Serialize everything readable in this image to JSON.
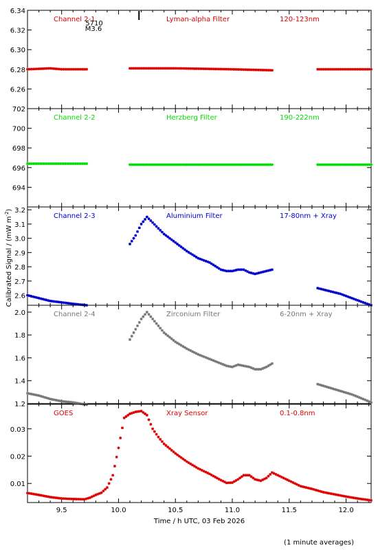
{
  "x_axis": {
    "label": "Time / h UTC, 03 Feb 2026",
    "range": [
      9.2,
      12.22
    ],
    "ticks": [
      "9.5",
      "10.0",
      "10.5",
      "11.0",
      "11.5",
      "12.0"
    ]
  },
  "y_axis_label": "Calibrated Signal / (mW m",
  "y_axis_label_sup": "-2",
  "y_axis_label_end": ")",
  "footnote": "(1 minute averages)",
  "marker": {
    "x": 10.18,
    "label_top": "5710",
    "label_bottom": "M3.6"
  },
  "chart_data": [
    {
      "type": "scatter",
      "labels": [
        "Channel 2-1",
        "Lyman-alpha Filter",
        "120-123nm"
      ],
      "color": "#dd0000",
      "ylim": [
        6.24,
        6.34
      ],
      "yticks": [
        "6.26",
        "6.28",
        "6.30",
        "6.32",
        "6.34"
      ],
      "segments": [
        {
          "x": [
            9.2,
            9.4,
            9.5,
            9.72
          ],
          "y": [
            6.28,
            6.281,
            6.28,
            6.28
          ]
        },
        {
          "x": [
            10.1,
            10.5,
            11.0,
            11.35
          ],
          "y": [
            6.281,
            6.281,
            6.28,
            6.279
          ]
        },
        {
          "x": [
            11.75,
            12.22
          ],
          "y": [
            6.28,
            6.28
          ]
        }
      ]
    },
    {
      "type": "scatter",
      "labels": [
        "Channel 2-2",
        "Herzberg Filter",
        "190-222nm"
      ],
      "color": "#00dd00",
      "ylim": [
        692,
        702
      ],
      "yticks": [
        "694",
        "696",
        "698",
        "700",
        "702"
      ],
      "segments": [
        {
          "x": [
            9.2,
            9.72
          ],
          "y": [
            696.4,
            696.4
          ]
        },
        {
          "x": [
            10.1,
            11.35
          ],
          "y": [
            696.3,
            696.3
          ]
        },
        {
          "x": [
            11.75,
            12.22
          ],
          "y": [
            696.3,
            696.3
          ]
        }
      ]
    },
    {
      "type": "scatter",
      "labels": [
        "Channel 2-3",
        "Aluminium Filter",
        "17-80nm + Xray"
      ],
      "color": "#0000cc",
      "ylim": [
        2.53,
        3.22
      ],
      "yticks": [
        "2.6",
        "2.7",
        "2.8",
        "2.9",
        "3.0",
        "3.1",
        "3.2"
      ],
      "segments": [
        {
          "x": [
            9.2,
            9.3,
            9.4,
            9.5,
            9.6,
            9.72
          ],
          "y": [
            2.6,
            2.58,
            2.56,
            2.55,
            2.54,
            2.53
          ]
        },
        {
          "x": [
            10.1,
            10.15,
            10.2,
            10.25,
            10.3,
            10.4,
            10.5,
            10.6,
            10.7,
            10.8,
            10.9,
            10.95,
            11.0,
            11.05,
            11.1,
            11.15,
            11.2,
            11.25,
            11.3,
            11.35
          ],
          "y": [
            2.96,
            3.02,
            3.1,
            3.15,
            3.11,
            3.03,
            2.97,
            2.91,
            2.86,
            2.83,
            2.78,
            2.77,
            2.77,
            2.78,
            2.78,
            2.76,
            2.75,
            2.76,
            2.77,
            2.78
          ]
        },
        {
          "x": [
            11.75,
            11.85,
            11.95,
            12.05,
            12.15,
            12.22
          ],
          "y": [
            2.65,
            2.63,
            2.61,
            2.58,
            2.55,
            2.53
          ]
        }
      ]
    },
    {
      "type": "scatter",
      "labels": [
        "Channel 2-4",
        "Zirconium Filter",
        "6-20nm + Xray"
      ],
      "color": "#777777",
      "ylim": [
        1.2,
        2.06
      ],
      "yticks": [
        "1.2",
        "1.4",
        "1.6",
        "1.8",
        "2.0"
      ],
      "segments": [
        {
          "x": [
            9.2,
            9.3,
            9.4,
            9.5,
            9.6,
            9.72
          ],
          "y": [
            1.29,
            1.27,
            1.24,
            1.22,
            1.21,
            1.19
          ]
        },
        {
          "x": [
            10.1,
            10.15,
            10.2,
            10.25,
            10.3,
            10.4,
            10.5,
            10.6,
            10.7,
            10.8,
            10.9,
            10.95,
            11.0,
            11.05,
            11.1,
            11.15,
            11.2,
            11.25,
            11.3,
            11.35
          ],
          "y": [
            1.76,
            1.85,
            1.94,
            2.0,
            1.94,
            1.82,
            1.74,
            1.68,
            1.63,
            1.59,
            1.55,
            1.53,
            1.52,
            1.54,
            1.53,
            1.52,
            1.5,
            1.5,
            1.52,
            1.55
          ]
        },
        {
          "x": [
            11.75,
            11.85,
            11.95,
            12.05,
            12.15,
            12.22
          ],
          "y": [
            1.37,
            1.34,
            1.31,
            1.28,
            1.24,
            1.21
          ]
        }
      ]
    },
    {
      "type": "scatter",
      "labels": [
        "GOES",
        "Xray Sensor",
        "0.1-0.8nm"
      ],
      "color": "#dd0000",
      "ylim": [
        0.003,
        0.039
      ],
      "yticks": [
        "0.01",
        "0.02",
        "0.03"
      ],
      "segments": [
        {
          "x": [
            9.2,
            9.3,
            9.4,
            9.5,
            9.6,
            9.7,
            9.75,
            9.8,
            9.85,
            9.9,
            9.95,
            10.0,
            10.05,
            10.1,
            10.15,
            10.2,
            10.25,
            10.3,
            10.35,
            10.4,
            10.5,
            10.6,
            10.7,
            10.8,
            10.9,
            10.95,
            11.0,
            11.05,
            11.1,
            11.15,
            11.2,
            11.25,
            11.3,
            11.35,
            11.4,
            11.5,
            11.6,
            11.7,
            11.8,
            11.9,
            12.0,
            12.1,
            12.22
          ],
          "y": [
            0.0065,
            0.0058,
            0.005,
            0.0045,
            0.0043,
            0.0042,
            0.0048,
            0.0058,
            0.0066,
            0.0085,
            0.013,
            0.023,
            0.034,
            0.0355,
            0.0362,
            0.0365,
            0.035,
            0.03,
            0.027,
            0.0245,
            0.021,
            0.018,
            0.0155,
            0.0135,
            0.0112,
            0.0102,
            0.0103,
            0.0115,
            0.013,
            0.013,
            0.0115,
            0.011,
            0.012,
            0.014,
            0.013,
            0.011,
            0.009,
            0.008,
            0.0068,
            0.006,
            0.0052,
            0.0045,
            0.0038
          ]
        }
      ]
    }
  ]
}
